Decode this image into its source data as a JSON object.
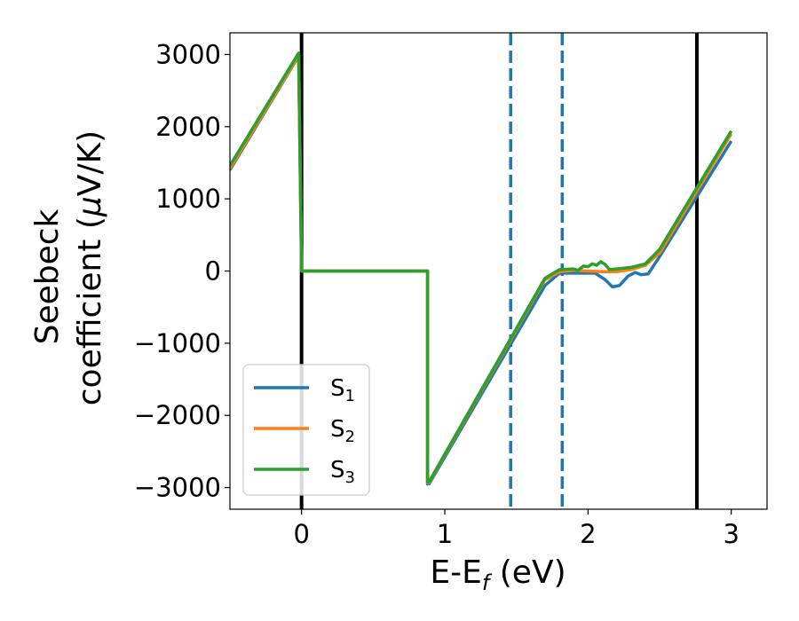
{
  "chart_data": {
    "type": "line",
    "xlabel": "E-E",
    "xlabel_sub": "f",
    "xlabel_unit": " (eV)",
    "ylabel_line1": "Seebeck",
    "ylabel_line2": "coefficient  (",
    "ylabel_mu": "μ",
    "ylabel_unit": "V/K)",
    "xlim": [
      -0.5,
      3.25
    ],
    "ylim": [
      -3300,
      3300
    ],
    "x_ticks": [
      0,
      1,
      2,
      3
    ],
    "x_tick_labels": [
      "0",
      "1",
      "2",
      "3"
    ],
    "y_ticks": [
      -3000,
      -2000,
      -1000,
      0,
      1000,
      2000,
      3000
    ],
    "y_tick_labels": [
      "−3000",
      "−2000",
      "−1000",
      "0",
      "1000",
      "2000",
      "3000"
    ],
    "legend_position": "lower-left",
    "series": [
      {
        "name": "S",
        "name_sub": "1",
        "color": "#1f77b4",
        "x": [
          -0.5,
          -0.02,
          0.0,
          0.88,
          0.88,
          0.89,
          1.7,
          1.8,
          1.9,
          2.05,
          2.12,
          2.17,
          2.22,
          2.28,
          2.33,
          2.37,
          2.42,
          2.5,
          3.0
        ],
        "y": [
          1400,
          2980,
          0,
          0,
          -2950,
          -2950,
          -200,
          -30,
          -30,
          -30,
          -120,
          -220,
          -200,
          -70,
          -20,
          -50,
          -40,
          200,
          1800
        ]
      },
      {
        "name": "S",
        "name_sub": "2",
        "color": "#ff7f0e",
        "x": [
          -0.5,
          -0.02,
          0.0,
          0.88,
          0.88,
          0.89,
          1.7,
          1.8,
          1.9,
          2.0,
          2.1,
          2.2,
          2.3,
          2.4,
          2.5,
          3.0
        ],
        "y": [
          1420,
          2990,
          0,
          0,
          -2930,
          -2930,
          -120,
          -10,
          10,
          0,
          -10,
          -10,
          20,
          80,
          250,
          1900
        ]
      },
      {
        "name": "S",
        "name_sub": "3",
        "color": "#2ca02c",
        "x": [
          -0.5,
          -0.02,
          0.0,
          0.88,
          0.88,
          0.89,
          1.7,
          1.8,
          1.9,
          1.93,
          1.97,
          2.0,
          2.03,
          2.06,
          2.09,
          2.12,
          2.15,
          2.2,
          2.3,
          2.4,
          2.5,
          3.0
        ],
        "y": [
          1460,
          3020,
          0,
          0,
          -2920,
          -2920,
          -100,
          20,
          30,
          10,
          70,
          60,
          100,
          80,
          130,
          90,
          20,
          30,
          50,
          100,
          300,
          1940
        ]
      }
    ],
    "vertical_lines": [
      {
        "x": 0.0,
        "color": "#000000",
        "style": "solid"
      },
      {
        "x": 1.46,
        "color": "#1f77b4",
        "style": "dashed"
      },
      {
        "x": 1.82,
        "color": "#1f77b4",
        "style": "dashed"
      },
      {
        "x": 2.76,
        "color": "#000000",
        "style": "solid"
      }
    ]
  }
}
